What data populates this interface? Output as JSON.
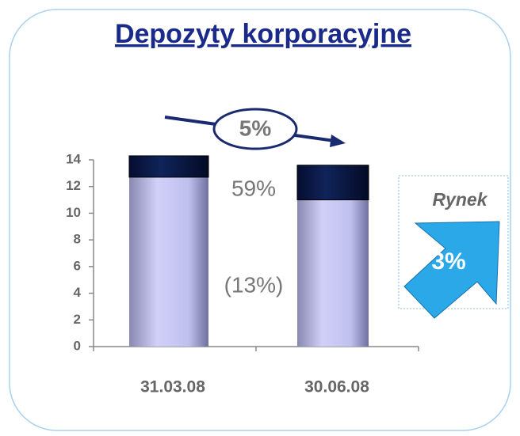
{
  "chart_data": {
    "type": "stacked_bar",
    "title": "Depozyty korporacyjne",
    "categories": [
      "31.03.08",
      "30.06.08"
    ],
    "series": [
      {
        "color": "#c4c4f0",
        "values": [
          12.7,
          11.0
        ]
      },
      {
        "color": "#0c1c4c",
        "values": [
          1.6,
          2.6
        ]
      }
    ],
    "ylim": [
      0,
      14
    ],
    "yticks": [
      0,
      2,
      4,
      6,
      8,
      10,
      12,
      14
    ],
    "grid": false,
    "annotations": [
      "5%",
      "59%",
      "(13%)"
    ],
    "market": {
      "label": "Rynek",
      "value": "3%"
    }
  }
}
